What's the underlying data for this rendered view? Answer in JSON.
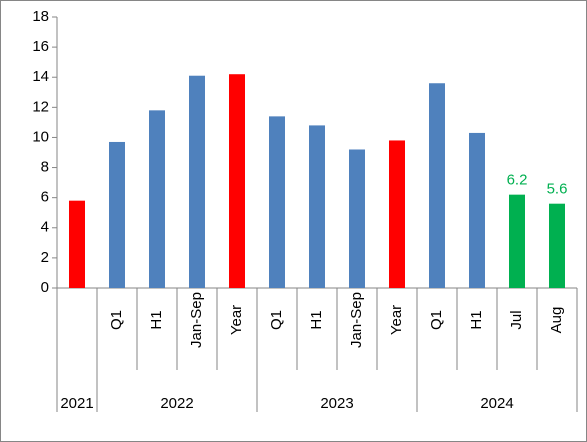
{
  "chart_data": {
    "type": "bar",
    "categories": [
      null,
      "Q1",
      "H1",
      "Jan-Sep",
      "Year",
      "Q1",
      "H1",
      "Jan-Sep",
      "Year",
      "Q1",
      "H1",
      "Jul",
      "Aug"
    ],
    "values": [
      5.8,
      9.7,
      11.8,
      14.1,
      14.2,
      11.4,
      10.8,
      9.2,
      9.8,
      13.6,
      10.3,
      6.2,
      5.6
    ],
    "value_labels": [
      null,
      null,
      null,
      null,
      null,
      null,
      null,
      null,
      null,
      null,
      null,
      "6.2",
      "5.6"
    ],
    "colors": [
      "#ff0000",
      "#4f81bd",
      "#4f81bd",
      "#4f81bd",
      "#ff0000",
      "#4f81bd",
      "#4f81bd",
      "#4f81bd",
      "#ff0000",
      "#4f81bd",
      "#4f81bd",
      "#00b050",
      "#00b050"
    ],
    "value_label_color": "#00b050",
    "groups": [
      {
        "label": "2021",
        "span": 1
      },
      {
        "label": "2022",
        "span": 4
      },
      {
        "label": "2023",
        "span": 4
      },
      {
        "label": "2024",
        "span": 4
      }
    ],
    "ylim": [
      0,
      18
    ],
    "yticks": [
      0,
      2,
      4,
      6,
      8,
      10,
      12,
      14,
      16,
      18
    ],
    "grid": false
  }
}
